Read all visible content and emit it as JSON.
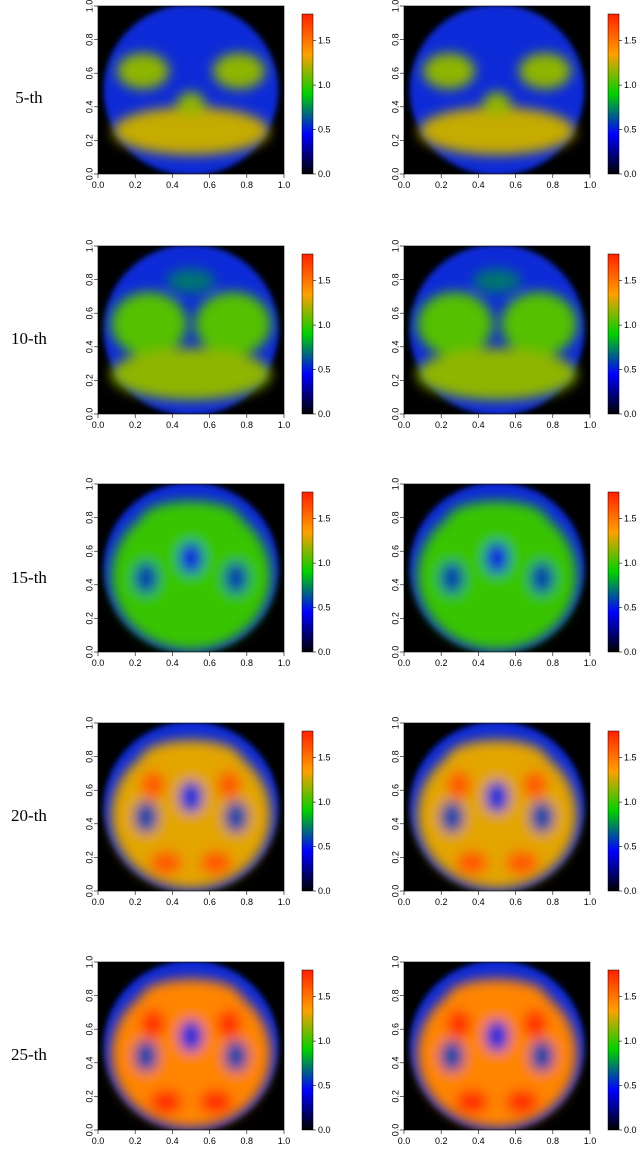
{
  "rows": [
    {
      "label": "5-th"
    },
    {
      "label": "10-th"
    },
    {
      "label": "15-th"
    },
    {
      "label": "20-th"
    },
    {
      "label": "25-th"
    }
  ],
  "chart_data": {
    "type": "heatmap",
    "title": "",
    "xlabel": "",
    "ylabel": "",
    "grid": false,
    "panels_per_row": 2,
    "xlim": [
      0,
      1
    ],
    "ylim": [
      0,
      1
    ],
    "x_ticks": [
      "0.0",
      "0.2",
      "0.4",
      "0.6",
      "0.8",
      "1.0"
    ],
    "y_ticks": [
      "0.0",
      "0.2",
      "0.4",
      "0.6",
      "0.8",
      "1.0"
    ],
    "colorbar": {
      "range": [
        0,
        1.8
      ],
      "ticks": [
        "0.0",
        "0.5",
        "1.0",
        "1.5"
      ],
      "tick_values": [
        0,
        0.5,
        1.0,
        1.5
      ],
      "colors": [
        "#000000",
        "#0000ff",
        "#00d000",
        "#ffa000",
        "#ff2000"
      ]
    },
    "intensity": [
      1.25,
      1.15,
      1.0,
      1.3,
      1.45
    ],
    "head_color": "#0a2ad8",
    "background_color": "#000000"
  }
}
